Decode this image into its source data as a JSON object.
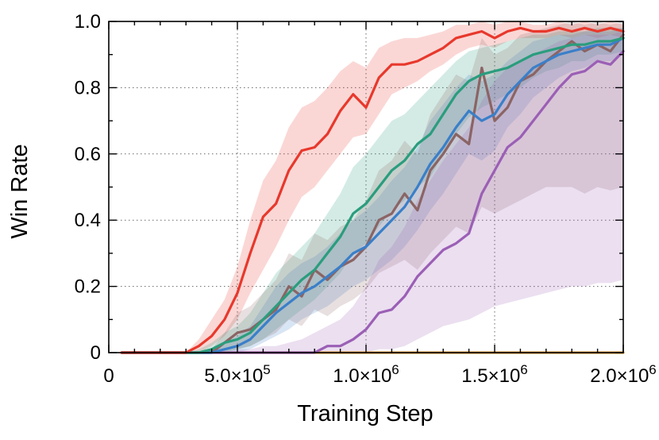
{
  "chart_data": {
    "type": "line",
    "title": "",
    "xlabel": "Training Step",
    "ylabel": "Win Rate",
    "xlim": [
      0,
      2000000
    ],
    "ylim": [
      0,
      1.0
    ],
    "grid": "dotted",
    "legend": "none",
    "xticks": [
      {
        "value": 0,
        "base": "0",
        "exp": ""
      },
      {
        "value": 500000,
        "base": "5.0×10",
        "exp": "5"
      },
      {
        "value": 1000000,
        "base": "1.0×10",
        "exp": "6"
      },
      {
        "value": 1500000,
        "base": "1.5×10",
        "exp": "6"
      },
      {
        "value": 2000000,
        "base": "2.0×10",
        "exp": "6"
      }
    ],
    "yticks": [
      {
        "value": 0,
        "label": "0"
      },
      {
        "value": 0.2,
        "label": "0.2"
      },
      {
        "value": 0.4,
        "label": "0.4"
      },
      {
        "value": 0.6,
        "label": "0.6"
      },
      {
        "value": 0.8,
        "label": "0.8"
      },
      {
        "value": 1.0,
        "label": "1.0"
      }
    ],
    "x": [
      50000,
      100000,
      150000,
      200000,
      250000,
      300000,
      350000,
      400000,
      450000,
      500000,
      550000,
      600000,
      650000,
      700000,
      750000,
      800000,
      850000,
      900000,
      950000,
      1000000,
      1050000,
      1100000,
      1150000,
      1200000,
      1250000,
      1300000,
      1350000,
      1400000,
      1450000,
      1500000,
      1550000,
      1600000,
      1650000,
      1700000,
      1750000,
      1800000,
      1850000,
      1900000,
      1950000,
      2000000
    ],
    "series": [
      {
        "color": "#e8382c",
        "values": [
          0,
          0,
          0,
          0,
          0,
          0,
          0.02,
          0.05,
          0.1,
          0.18,
          0.3,
          0.41,
          0.45,
          0.55,
          0.61,
          0.62,
          0.66,
          0.73,
          0.78,
          0.74,
          0.83,
          0.87,
          0.87,
          0.88,
          0.9,
          0.92,
          0.95,
          0.96,
          0.97,
          0.95,
          0.97,
          0.98,
          0.97,
          0.97,
          0.98,
          0.97,
          0.98,
          0.97,
          0.98,
          0.97
        ],
        "lower": [
          0,
          0,
          0,
          0,
          0,
          0,
          0,
          0.02,
          0.05,
          0.1,
          0.18,
          0.25,
          0.32,
          0.4,
          0.47,
          0.5,
          0.55,
          0.6,
          0.65,
          0.66,
          0.72,
          0.78,
          0.8,
          0.82,
          0.85,
          0.87,
          0.9,
          0.92,
          0.93,
          0.92,
          0.94,
          0.95,
          0.95,
          0.95,
          0.96,
          0.95,
          0.96,
          0.95,
          0.96,
          0.95
        ],
        "upper": [
          0,
          0,
          0,
          0,
          0,
          0,
          0.04,
          0.1,
          0.16,
          0.26,
          0.4,
          0.52,
          0.58,
          0.68,
          0.74,
          0.76,
          0.8,
          0.85,
          0.88,
          0.86,
          0.92,
          0.94,
          0.95,
          0.95,
          0.96,
          0.97,
          0.99,
          0.99,
          1.0,
          0.99,
          1.0,
          1.0,
          0.99,
          0.99,
          1.0,
          0.99,
          1.0,
          0.99,
          1.0,
          0.99
        ]
      },
      {
        "color": "#2a9d7d",
        "values": [
          0,
          0,
          0,
          0,
          0,
          0,
          0,
          0.01,
          0.03,
          0.04,
          0.06,
          0.1,
          0.14,
          0.18,
          0.22,
          0.25,
          0.3,
          0.35,
          0.42,
          0.45,
          0.5,
          0.55,
          0.58,
          0.63,
          0.66,
          0.72,
          0.78,
          0.82,
          0.84,
          0.85,
          0.86,
          0.88,
          0.9,
          0.91,
          0.92,
          0.93,
          0.93,
          0.94,
          0.94,
          0.95
        ],
        "lower": [
          0,
          0,
          0,
          0,
          0,
          0,
          0,
          0,
          0,
          0.01,
          0.02,
          0.04,
          0.07,
          0.1,
          0.13,
          0.16,
          0.2,
          0.24,
          0.3,
          0.33,
          0.38,
          0.43,
          0.46,
          0.5,
          0.53,
          0.6,
          0.66,
          0.71,
          0.74,
          0.76,
          0.78,
          0.8,
          0.83,
          0.85,
          0.86,
          0.88,
          0.88,
          0.9,
          0.9,
          0.91
        ],
        "upper": [
          0,
          0,
          0,
          0,
          0,
          0,
          0.01,
          0.03,
          0.06,
          0.08,
          0.12,
          0.18,
          0.24,
          0.28,
          0.32,
          0.36,
          0.42,
          0.48,
          0.56,
          0.6,
          0.65,
          0.7,
          0.72,
          0.76,
          0.8,
          0.84,
          0.88,
          0.91,
          0.92,
          0.93,
          0.94,
          0.95,
          0.96,
          0.96,
          0.97,
          0.97,
          0.97,
          0.98,
          0.98,
          0.98
        ]
      },
      {
        "color": "#3a7fc9",
        "values": [
          0,
          0,
          0,
          0,
          0,
          0,
          0,
          0,
          0.01,
          0.02,
          0.04,
          0.08,
          0.12,
          0.15,
          0.18,
          0.2,
          0.23,
          0.26,
          0.3,
          0.32,
          0.36,
          0.4,
          0.44,
          0.5,
          0.57,
          0.62,
          0.68,
          0.73,
          0.7,
          0.72,
          0.78,
          0.82,
          0.86,
          0.88,
          0.9,
          0.91,
          0.92,
          0.93,
          0.93,
          0.95
        ],
        "lower": [
          0,
          0,
          0,
          0,
          0,
          0,
          0,
          0,
          0,
          0,
          0.01,
          0.03,
          0.05,
          0.07,
          0.1,
          0.12,
          0.14,
          0.17,
          0.2,
          0.22,
          0.25,
          0.28,
          0.32,
          0.37,
          0.43,
          0.48,
          0.54,
          0.6,
          0.58,
          0.61,
          0.68,
          0.72,
          0.77,
          0.8,
          0.83,
          0.85,
          0.86,
          0.88,
          0.88,
          0.9
        ],
        "upper": [
          0,
          0,
          0,
          0,
          0,
          0,
          0,
          0.01,
          0.03,
          0.05,
          0.08,
          0.14,
          0.2,
          0.24,
          0.27,
          0.29,
          0.32,
          0.36,
          0.4,
          0.43,
          0.47,
          0.52,
          0.56,
          0.62,
          0.7,
          0.75,
          0.8,
          0.84,
          0.82,
          0.84,
          0.88,
          0.91,
          0.94,
          0.95,
          0.96,
          0.96,
          0.97,
          0.97,
          0.97,
          0.98
        ]
      },
      {
        "color": "#8b6464",
        "values": [
          0,
          0,
          0,
          0,
          0,
          0,
          0,
          0,
          0.03,
          0.06,
          0.07,
          0.1,
          0.13,
          0.2,
          0.17,
          0.25,
          0.22,
          0.26,
          0.28,
          0.32,
          0.4,
          0.42,
          0.48,
          0.43,
          0.55,
          0.6,
          0.66,
          0.63,
          0.86,
          0.7,
          0.74,
          0.82,
          0.84,
          0.88,
          0.91,
          0.94,
          0.91,
          0.93,
          0.91,
          0.96
        ],
        "lower": [
          0,
          0,
          0,
          0,
          0,
          0,
          0,
          0,
          0,
          0.01,
          0.02,
          0.04,
          0.06,
          0.1,
          0.08,
          0.13,
          0.11,
          0.14,
          0.16,
          0.19,
          0.24,
          0.26,
          0.28,
          0.25,
          0.3,
          0.34,
          0.38,
          0.36,
          0.44,
          0.42,
          0.44,
          0.46,
          0.48,
          0.5,
          0.5,
          0.5,
          0.48,
          0.5,
          0.49,
          0.5
        ],
        "upper": [
          0,
          0,
          0,
          0,
          0,
          0,
          0,
          0.01,
          0.06,
          0.12,
          0.14,
          0.18,
          0.22,
          0.3,
          0.28,
          0.36,
          0.34,
          0.38,
          0.4,
          0.46,
          0.55,
          0.58,
          0.64,
          0.6,
          0.72,
          0.78,
          0.84,
          0.82,
          0.95,
          0.9,
          0.92,
          0.96,
          0.97,
          0.98,
          0.99,
          1.0,
          0.99,
          1.0,
          0.99,
          1.0
        ]
      },
      {
        "color": "#9b5fb5",
        "values": [
          0,
          0,
          0,
          0,
          0,
          0,
          0,
          0,
          0,
          0,
          0,
          0,
          0,
          0,
          0,
          0,
          0.02,
          0.02,
          0.04,
          0.07,
          0.12,
          0.13,
          0.17,
          0.23,
          0.27,
          0.31,
          0.33,
          0.36,
          0.48,
          0.55,
          0.62,
          0.65,
          0.7,
          0.75,
          0.8,
          0.84,
          0.85,
          0.88,
          0.87,
          0.91
        ],
        "lower": [
          0,
          0,
          0,
          0,
          0,
          0,
          0,
          0,
          0,
          0,
          0,
          0,
          0,
          0,
          0,
          0,
          0,
          0,
          0,
          0,
          0.01,
          0.01,
          0.02,
          0.04,
          0.06,
          0.08,
          0.09,
          0.1,
          0.12,
          0.14,
          0.15,
          0.16,
          0.17,
          0.18,
          0.19,
          0.2,
          0.2,
          0.21,
          0.21,
          0.22
        ],
        "upper": [
          0,
          0,
          0,
          0,
          0,
          0,
          0,
          0,
          0,
          0.01,
          0.01,
          0.02,
          0.02,
          0.03,
          0.04,
          0.06,
          0.08,
          0.1,
          0.14,
          0.2,
          0.28,
          0.32,
          0.38,
          0.46,
          0.52,
          0.58,
          0.63,
          0.68,
          0.76,
          0.82,
          0.86,
          0.88,
          0.9,
          0.92,
          0.94,
          0.95,
          0.96,
          0.96,
          0.96,
          0.97
        ]
      },
      {
        "color": "#d99b3b",
        "values": [
          0,
          0,
          0,
          0,
          0,
          0,
          0,
          0,
          0,
          0,
          0,
          0,
          0,
          0,
          0,
          0,
          0,
          0,
          0,
          0,
          0,
          0,
          0,
          0,
          0,
          0,
          0,
          0,
          0,
          0,
          0,
          0,
          0,
          0,
          0,
          0,
          0,
          0,
          0,
          0
        ]
      }
    ]
  }
}
